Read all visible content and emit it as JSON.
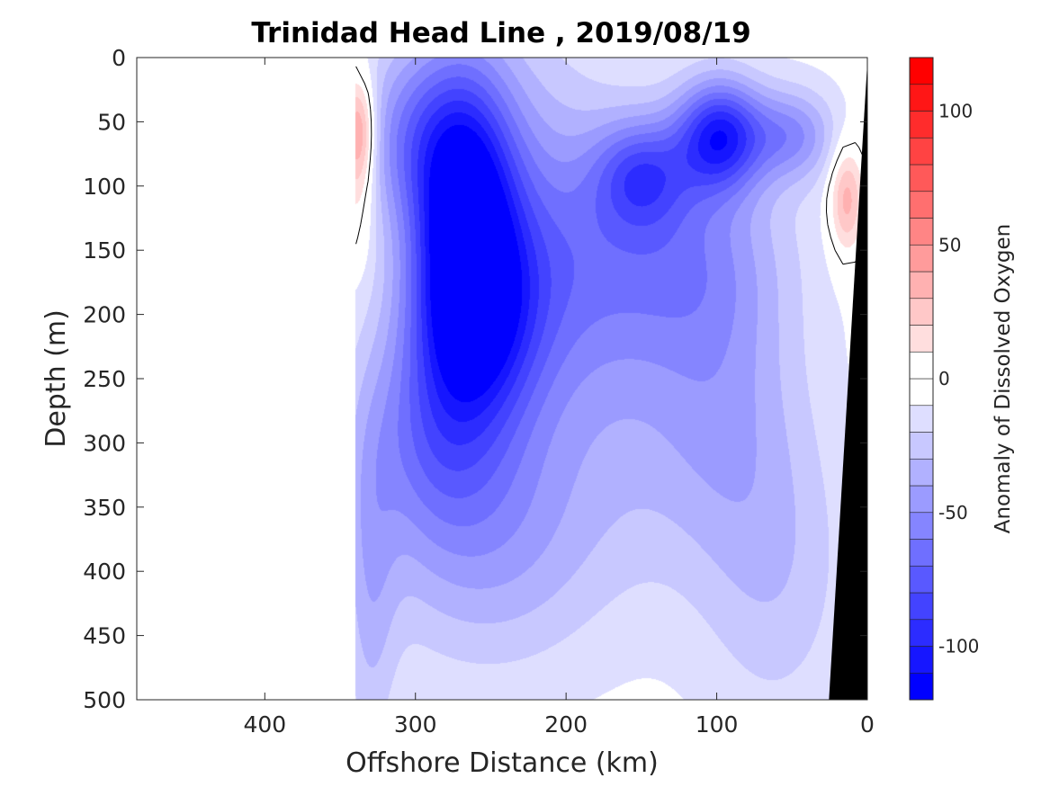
{
  "chart_data": {
    "type": "heatmap",
    "title": "Trinidad Head Line , 2019/08/19",
    "xlabel": "Offshore Distance (km)",
    "ylabel": "Depth (m)",
    "colorbar_label": "Anomaly of Dissolved Oxygen",
    "xlim": [
      485,
      0
    ],
    "ylim": [
      0,
      500
    ],
    "x_direction": "reversed",
    "y_direction": "reversed (depth increases downward)",
    "x_ticks": [
      400,
      300,
      200,
      100,
      0
    ],
    "y_ticks": [
      0,
      50,
      100,
      150,
      200,
      250,
      300,
      350,
      400,
      450,
      500
    ],
    "colorbar": {
      "range": [
        -120,
        120
      ],
      "step": 10,
      "ticks": [
        100,
        50,
        0,
        -50,
        -100
      ],
      "colormap": "blue-white-red"
    },
    "blob_columns": [
      "x_km",
      "depth_m",
      "anomaly",
      "spread_x_km",
      "spread_depth_m"
    ],
    "features": [
      [
        268,
        110,
        -100,
        24,
        75
      ],
      [
        262,
        200,
        -68,
        30,
        55
      ],
      [
        285,
        290,
        -48,
        35,
        60
      ],
      [
        255,
        380,
        -30,
        55,
        70
      ],
      [
        305,
        60,
        -38,
        25,
        50
      ],
      [
        98,
        60,
        -88,
        20,
        30
      ],
      [
        150,
        90,
        -52,
        22,
        30
      ],
      [
        120,
        150,
        -35,
        45,
        60
      ],
      [
        50,
        60,
        -42,
        20,
        25
      ],
      [
        190,
        150,
        -25,
        45,
        70
      ],
      [
        95,
        270,
        -24,
        35,
        90
      ],
      [
        60,
        400,
        -20,
        35,
        90
      ],
      [
        160,
        280,
        -18,
        50,
        90
      ],
      [
        330,
        420,
        -22,
        12,
        100
      ],
      [
        230,
        150,
        -28,
        40,
        120
      ],
      [
        338,
        55,
        52,
        8,
        30
      ],
      [
        338,
        110,
        20,
        8,
        40
      ],
      [
        14,
        110,
        42,
        8,
        30
      ]
    ],
    "black_contour_level": 0,
    "bathymetry_fill": "black wedge at 0-25 km",
    "colors": {
      "negative_max": "#0000ff",
      "positive_max": "#ff0000",
      "zero": "#ffffff",
      "bathymetry": "#000000"
    }
  }
}
